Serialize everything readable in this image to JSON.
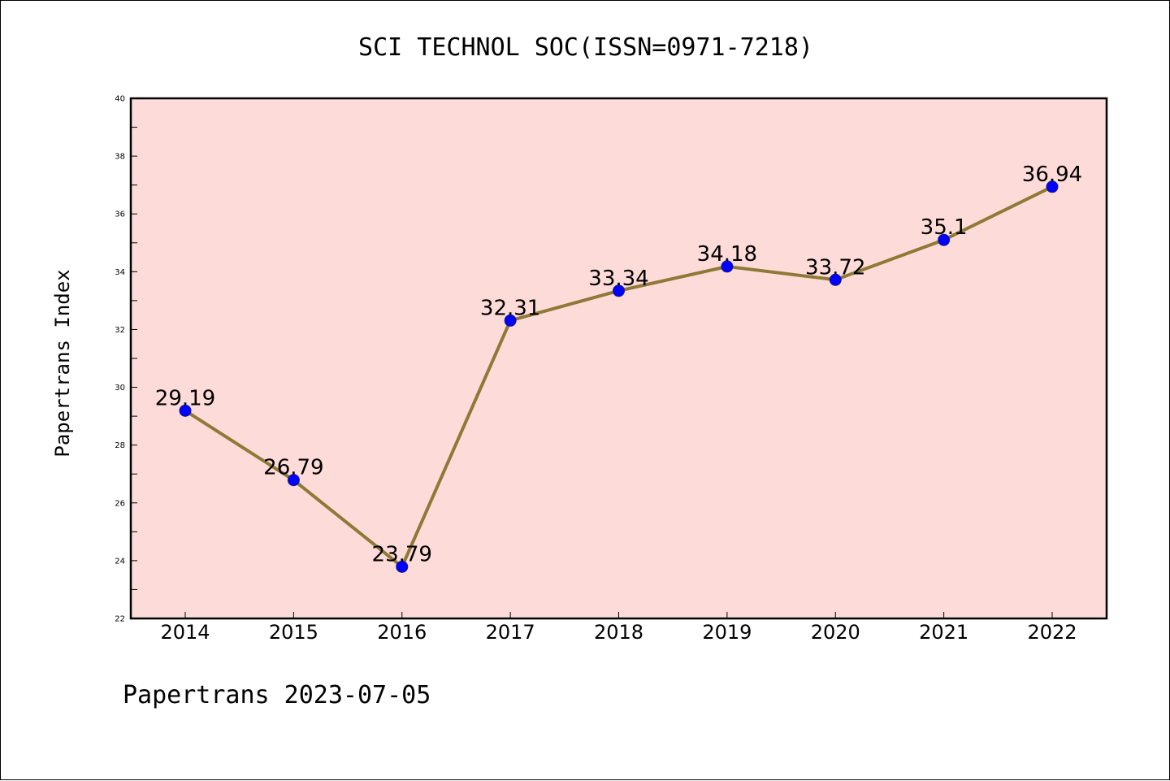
{
  "chart_data": {
    "type": "line",
    "title": "SCI TECHNOL SOC(ISSN=0971-7218)",
    "xlabel": "",
    "ylabel": "Papertrans Index",
    "footer": "Papertrans 2023-07-05",
    "categories": [
      "2014",
      "2015",
      "2016",
      "2017",
      "2018",
      "2019",
      "2020",
      "2021",
      "2022"
    ],
    "series": [
      {
        "values": [
          29.19,
          26.79,
          23.79,
          32.31,
          33.34,
          34.18,
          33.72,
          35.1,
          36.94
        ],
        "labels": [
          "29.19",
          "26.79",
          "23.79",
          "32.31",
          "33.34",
          "34.18",
          "33.72",
          "35.1",
          "36.94"
        ]
      }
    ],
    "ylim": [
      22,
      40
    ],
    "yticks": [
      22,
      24,
      26,
      28,
      30,
      32,
      34,
      36,
      38,
      40
    ],
    "ytick_labels": [
      "22",
      "24",
      "26",
      "28",
      "30",
      "32",
      "34",
      "36",
      "38",
      "40"
    ],
    "grid": false,
    "legend": "none",
    "colors": {
      "plot_background": "#FDDBD9",
      "line": "#8E7A36",
      "marker": "#0000FF",
      "axes": "#000000"
    }
  }
}
